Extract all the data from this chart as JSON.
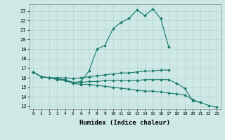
{
  "xlabel": "Humidex (Indice chaleur)",
  "bg_color": "#cde8e5",
  "grid_color": "#b2d4d0",
  "line_color": "#1a7a6e",
  "xlim": [
    -0.5,
    23.5
  ],
  "ylim": [
    12.7,
    23.7
  ],
  "yticks": [
    13,
    14,
    15,
    16,
    17,
    18,
    19,
    20,
    21,
    22,
    23
  ],
  "xticks": [
    0,
    1,
    2,
    3,
    4,
    5,
    6,
    7,
    8,
    9,
    10,
    11,
    12,
    13,
    14,
    15,
    16,
    17,
    18,
    19,
    20,
    21,
    22,
    23
  ],
  "lines": [
    {
      "x": [
        0,
        1,
        2,
        3,
        4,
        5,
        6,
        7,
        8,
        9,
        10,
        11,
        12,
        13,
        14,
        15,
        16,
        17
      ],
      "y": [
        16.6,
        16.1,
        16.0,
        15.8,
        15.7,
        15.5,
        15.6,
        16.7,
        19.0,
        19.4,
        21.1,
        21.8,
        22.2,
        23.1,
        22.5,
        23.2,
        22.2,
        19.2
      ]
    },
    {
      "x": [
        0,
        1,
        2,
        3,
        4,
        5,
        6,
        7,
        8,
        9,
        10,
        11,
        12,
        13,
        14,
        15,
        16,
        17
      ],
      "y": [
        16.6,
        16.1,
        16.0,
        16.0,
        16.0,
        15.9,
        16.0,
        16.1,
        16.2,
        16.3,
        16.4,
        16.5,
        16.5,
        16.6,
        16.7,
        16.7,
        16.8,
        16.8
      ]
    },
    {
      "x": [
        0,
        1,
        2,
        3,
        4,
        5,
        6,
        7,
        8,
        9,
        10,
        11,
        12,
        13,
        14,
        15,
        16,
        17,
        18,
        19,
        20,
        21
      ],
      "y": [
        16.6,
        16.1,
        16.0,
        15.9,
        15.8,
        15.5,
        15.5,
        15.6,
        15.6,
        15.7,
        15.7,
        15.7,
        15.7,
        15.7,
        15.8,
        15.8,
        15.8,
        15.8,
        15.4,
        14.9,
        13.6,
        13.4
      ]
    },
    {
      "x": [
        0,
        1,
        2,
        3,
        4,
        5,
        6,
        7,
        8,
        9,
        10,
        11,
        12,
        13,
        14,
        15,
        16,
        17,
        18,
        19,
        20,
        21,
        22,
        23
      ],
      "y": [
        16.6,
        16.1,
        16.0,
        15.9,
        15.7,
        15.4,
        15.3,
        15.3,
        15.2,
        15.1,
        15.0,
        14.9,
        14.8,
        14.7,
        14.6,
        14.6,
        14.5,
        14.4,
        14.3,
        14.2,
        13.7,
        13.4,
        13.1,
        12.9
      ]
    }
  ]
}
